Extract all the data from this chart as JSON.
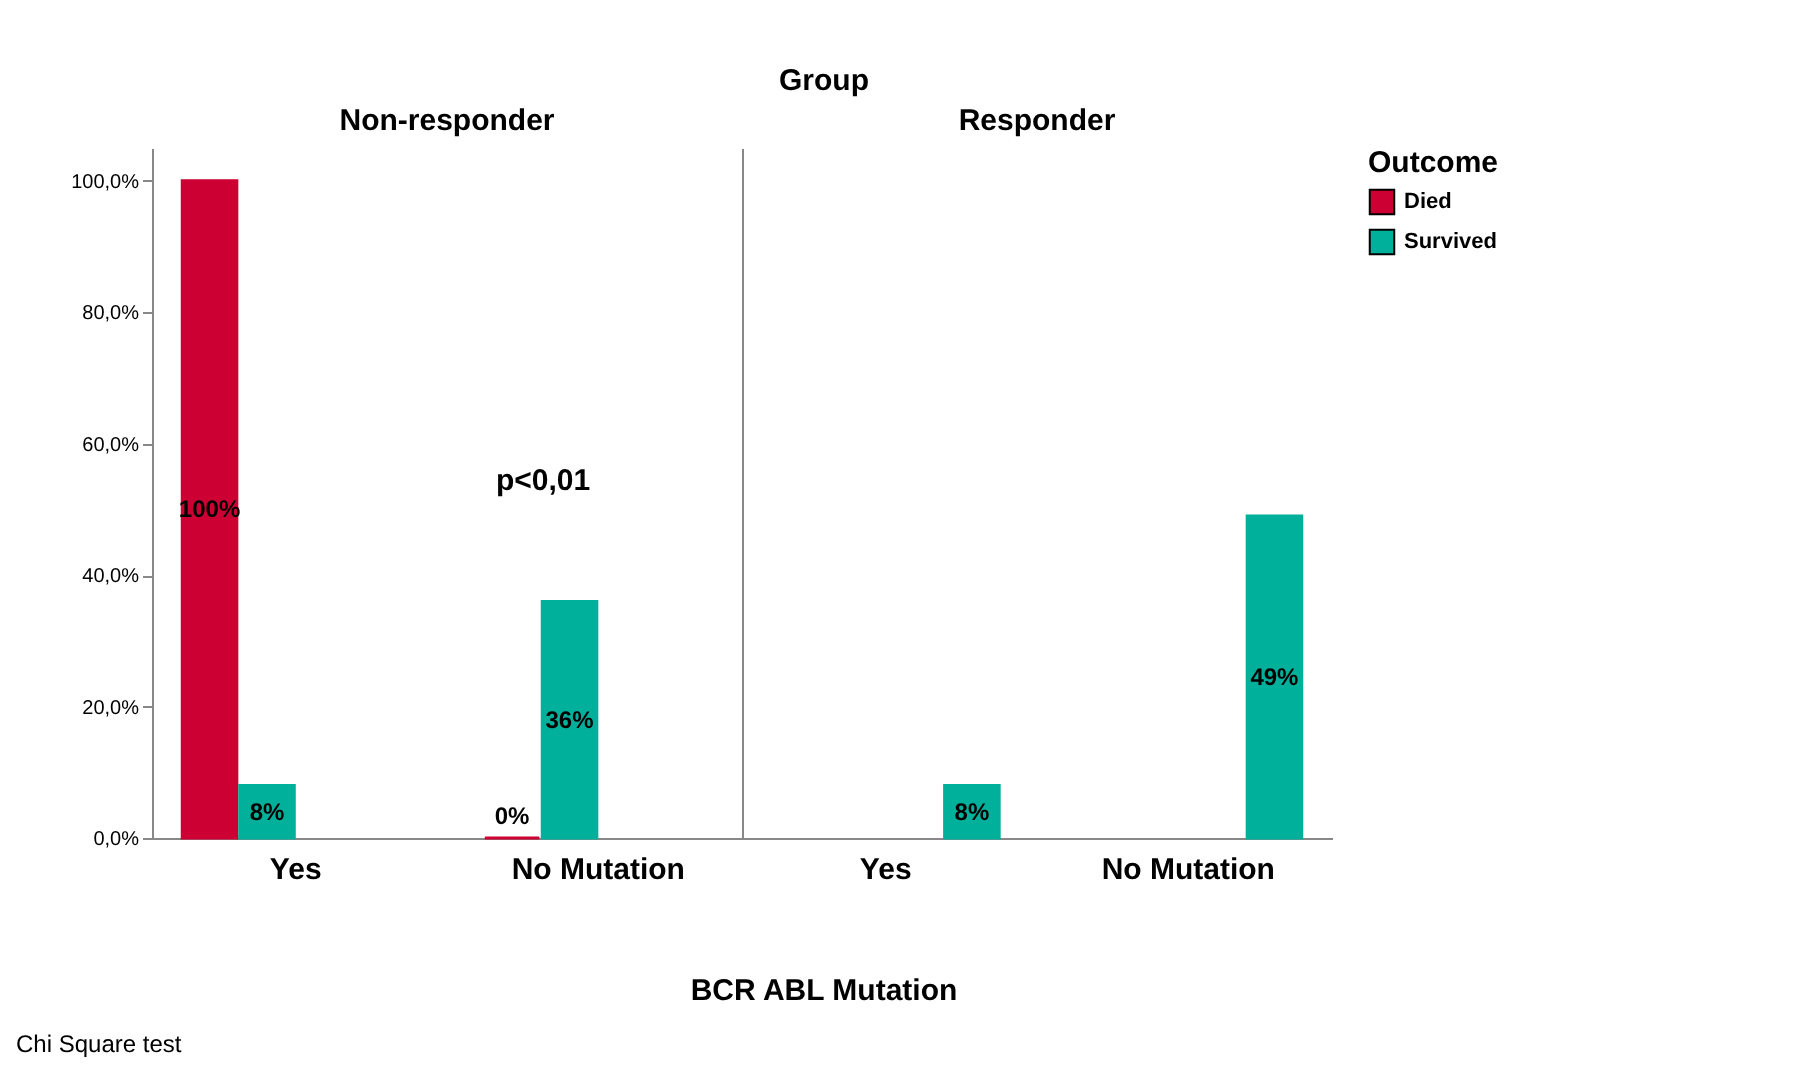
{
  "chart_data": [
    {
      "type": "bar",
      "title": "Non-responder",
      "xlabel": "BCR ABL Mutation",
      "categories": [
        "Yes",
        "No Mutation"
      ],
      "series": [
        {
          "color": "#cc0033",
          "values": [
            100,
            0
          ],
          "value_labels": [
            "100%",
            "0%"
          ]
        },
        {
          "color": "#00b09b",
          "values": [
            8,
            36
          ],
          "value_labels": [
            "8%",
            "36%"
          ]
        }
      ],
      "ylim": [
        0,
        105
      ],
      "yticks": [
        {
          "value": 0,
          "label": "0,0%"
        },
        {
          "value": 20,
          "label": "20,0%"
        },
        {
          "value": 40,
          "label": "40,0%"
        },
        {
          "value": 60,
          "label": "60,0%"
        },
        {
          "value": 80,
          "label": "80,0%"
        },
        {
          "value": 100,
          "label": "100,0%"
        }
      ],
      "annotations": [
        "Group",
        "p<0,01",
        "Chi Square test"
      ]
    },
    {
      "type": "bar",
      "title": "Responder",
      "categories": [
        "Yes",
        "No Mutation"
      ],
      "series": [
        {
          "name": "Died",
          "color": "#cc0033",
          "values": [
            null,
            null
          ],
          "value_labels": [
            null,
            null
          ]
        },
        {
          "name": "Survived",
          "color": "#00b09b",
          "values": [
            8,
            49
          ],
          "value_labels": [
            "8%",
            "49%"
          ]
        }
      ],
      "ylim": [
        0,
        105
      ],
      "tick_labels": "x",
      "legend_title": "Outcome",
      "legend": "top right"
    }
  ]
}
